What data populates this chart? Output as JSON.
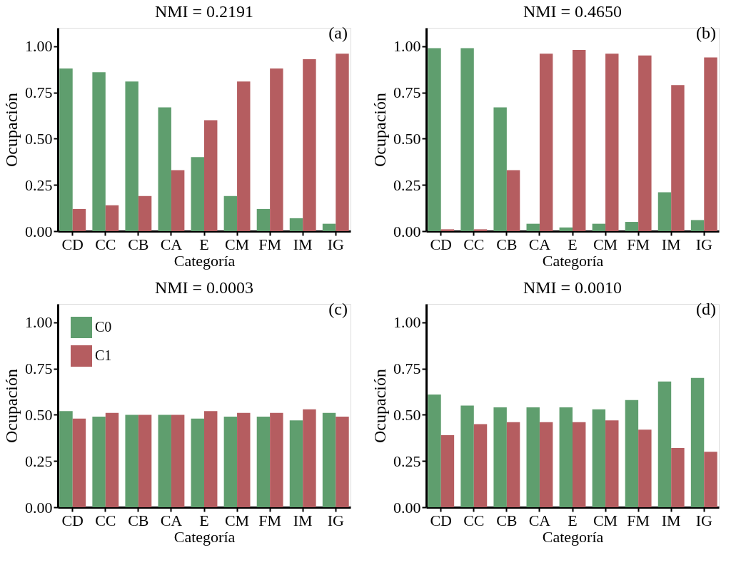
{
  "chart_data": [
    {
      "type": "bar",
      "title": "NMI = 0.2191",
      "xlabel": "Categoría",
      "ylabel": "Ocupación",
      "annotations": [
        "(a)"
      ],
      "categories": [
        "CD",
        "CC",
        "CB",
        "CA",
        "E",
        "CM",
        "FM",
        "IM",
        "IG"
      ],
      "series": [
        {
          "color": "#5f9e6e",
          "values": [
            0.88,
            0.86,
            0.81,
            0.67,
            0.4,
            0.19,
            0.12,
            0.07,
            0.04
          ]
        },
        {
          "color": "#b55d60",
          "values": [
            0.12,
            0.14,
            0.19,
            0.33,
            0.6,
            0.81,
            0.88,
            0.93,
            0.96
          ]
        }
      ],
      "ylim": [
        0,
        1.1
      ],
      "yticks": [
        {
          "value": 0,
          "label": "0.00"
        },
        {
          "value": 0.25,
          "label": "0.25"
        },
        {
          "value": 0.5,
          "label": "0.50"
        },
        {
          "value": 0.75,
          "label": "0.75"
        },
        {
          "value": 1,
          "label": "1.00"
        }
      ],
      "grid": false,
      "legend": false
    },
    {
      "type": "bar",
      "title": "NMI = 0.4650",
      "xlabel": "Categoría",
      "ylabel": "Ocupación",
      "annotations": [
        "(b)"
      ],
      "categories": [
        "CD",
        "CC",
        "CB",
        "CA",
        "E",
        "CM",
        "FM",
        "IM",
        "IG"
      ],
      "series": [
        {
          "color": "#5f9e6e",
          "values": [
            0.99,
            0.99,
            0.67,
            0.04,
            0.02,
            0.04,
            0.05,
            0.21,
            0.06
          ]
        },
        {
          "color": "#b55d60",
          "values": [
            0.01,
            0.01,
            0.33,
            0.96,
            0.98,
            0.96,
            0.95,
            0.79,
            0.94
          ]
        }
      ],
      "ylim": [
        0,
        1.1
      ],
      "yticks": [
        {
          "value": 0,
          "label": "0.00"
        },
        {
          "value": 0.25,
          "label": "0.25"
        },
        {
          "value": 0.5,
          "label": "0.50"
        },
        {
          "value": 0.75,
          "label": "0.75"
        },
        {
          "value": 1,
          "label": "1.00"
        }
      ],
      "grid": false,
      "legend": false
    },
    {
      "type": "bar",
      "title": "NMI = 0.0003",
      "xlabel": "Categoría",
      "ylabel": "Ocupación",
      "annotations": [
        "(c)"
      ],
      "categories": [
        "CD",
        "CC",
        "CB",
        "CA",
        "E",
        "CM",
        "FM",
        "IM",
        "IG"
      ],
      "series": [
        {
          "name": "C0",
          "color": "#5f9e6e",
          "values": [
            0.52,
            0.49,
            0.5,
            0.5,
            0.48,
            0.49,
            0.49,
            0.47,
            0.51
          ]
        },
        {
          "name": "C1",
          "color": "#b55d60",
          "values": [
            0.48,
            0.51,
            0.5,
            0.5,
            0.52,
            0.51,
            0.51,
            0.53,
            0.49
          ]
        }
      ],
      "ylim": [
        0,
        1.1
      ],
      "yticks": [
        {
          "value": 0,
          "label": "0.00"
        },
        {
          "value": 0.25,
          "label": "0.25"
        },
        {
          "value": 0.5,
          "label": "0.50"
        },
        {
          "value": 0.75,
          "label": "0.75"
        },
        {
          "value": 1,
          "label": "1.00"
        }
      ],
      "grid": false,
      "legend": "top left"
    },
    {
      "type": "bar",
      "title": "NMI = 0.0010",
      "xlabel": "Categoría",
      "ylabel": "Ocupación",
      "annotations": [
        "(d)"
      ],
      "categories": [
        "CD",
        "CC",
        "CB",
        "CA",
        "E",
        "CM",
        "FM",
        "IM",
        "IG"
      ],
      "series": [
        {
          "color": "#5f9e6e",
          "values": [
            0.61,
            0.55,
            0.54,
            0.54,
            0.54,
            0.53,
            0.58,
            0.68,
            0.7
          ]
        },
        {
          "color": "#b55d60",
          "values": [
            0.39,
            0.45,
            0.46,
            0.46,
            0.46,
            0.47,
            0.42,
            0.32,
            0.3
          ]
        }
      ],
      "ylim": [
        0,
        1.1
      ],
      "yticks": [
        {
          "value": 0,
          "label": "0.00"
        },
        {
          "value": 0.25,
          "label": "0.25"
        },
        {
          "value": 0.5,
          "label": "0.50"
        },
        {
          "value": 0.75,
          "label": "0.75"
        },
        {
          "value": 1,
          "label": "1.00"
        }
      ],
      "grid": false,
      "legend": false
    }
  ]
}
